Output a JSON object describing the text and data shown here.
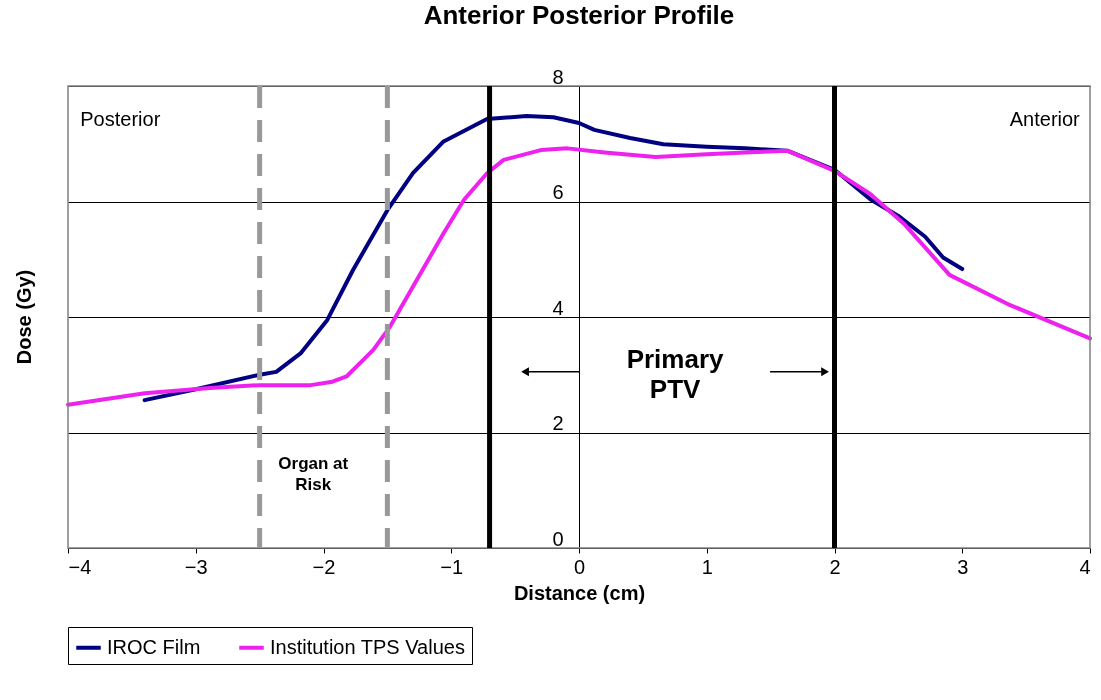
{
  "chart_data": {
    "type": "line",
    "title": "Anterior Posterior Profile",
    "xlabel": "Distance (cm)",
    "ylabel": "Dose (Gy)",
    "xlim": [
      -4,
      4
    ],
    "xticks": [
      -4,
      -3,
      -2,
      -1,
      0,
      1,
      2,
      3,
      4
    ],
    "ylim": [
      0,
      8
    ],
    "yticks": [
      0,
      2,
      4,
      6,
      8
    ],
    "grid": "y",
    "legend": "bottom",
    "line_style": "solid",
    "marker": "none",
    "series": [
      {
        "name": "IROC Film",
        "color": "#000080",
        "x": [
          -3.4,
          -3.0,
          -2.5,
          -2.37,
          -2.18,
          -1.97,
          -1.77,
          -1.5,
          -1.3,
          -1.06,
          -0.72,
          -0.41,
          -0.2,
          0.0,
          0.12,
          0.4,
          0.66,
          1.0,
          1.3,
          1.63,
          2.0,
          2.28,
          2.5,
          2.71,
          2.85,
          3.0
        ],
        "values": [
          2.56,
          2.75,
          3.0,
          3.05,
          3.37,
          3.95,
          4.81,
          5.85,
          6.49,
          7.04,
          7.43,
          7.48,
          7.46,
          7.36,
          7.24,
          7.1,
          6.99,
          6.95,
          6.92,
          6.88,
          6.55,
          6.04,
          5.75,
          5.39,
          5.03,
          4.83
        ]
      },
      {
        "name": "Institution TPS Values",
        "color": "#ee22ee",
        "x": [
          -4.0,
          -3.4,
          -2.89,
          -2.5,
          -2.1,
          -1.93,
          -1.82,
          -1.61,
          -1.48,
          -1.27,
          -1.06,
          -0.9,
          -0.72,
          -0.59,
          -0.3,
          -0.09,
          0.2,
          0.6,
          1.0,
          1.3,
          1.63,
          2.0,
          2.28,
          2.55,
          2.9,
          3.36,
          4.0
        ],
        "values": [
          2.48,
          2.68,
          2.77,
          2.82,
          2.82,
          2.88,
          2.97,
          3.43,
          3.83,
          4.64,
          5.45,
          6.03,
          6.49,
          6.72,
          6.89,
          6.92,
          6.85,
          6.77,
          6.82,
          6.85,
          6.88,
          6.53,
          6.13,
          5.6,
          4.73,
          4.22,
          3.63
        ]
      }
    ],
    "ref_lines": [
      {
        "axis": "x",
        "value": -2.5,
        "color": "#999999",
        "line_style": "dashed"
      },
      {
        "axis": "x",
        "value": -1.5,
        "color": "#999999",
        "line_style": "dashed"
      },
      {
        "axis": "x",
        "value": -0.7,
        "color": "#000000",
        "line_style": "solid"
      },
      {
        "axis": "x",
        "value": 2,
        "color": "#000000",
        "line_style": "solid"
      }
    ],
    "annotations": [
      "Posterior",
      "Anterior",
      "Organ at\nRisk",
      "Primary\nPTV"
    ]
  }
}
